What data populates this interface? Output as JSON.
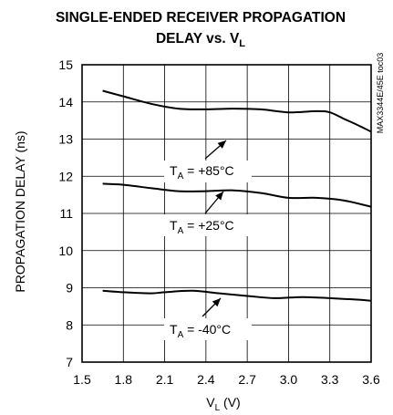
{
  "chart_data": {
    "type": "line",
    "title_line1": "SINGLE-ENDED RECEIVER PROPAGATION",
    "title_line2_prefix": "DELAY vs. V",
    "title_line2_sub": "L",
    "xlabel_main": "V",
    "xlabel_sub": "L",
    "xlabel_unit": " (V)",
    "ylabel": "PROPAGATION DELAY (ns)",
    "side_label": "MAX3344E/45E toc03",
    "xlim": [
      1.5,
      3.6
    ],
    "ylim": [
      7,
      15
    ],
    "xticks": [
      "1.5",
      "1.8",
      "2.1",
      "2.4",
      "2.7",
      "3.0",
      "3.3",
      "3.6"
    ],
    "yticks": [
      "7",
      "8",
      "9",
      "10",
      "11",
      "12",
      "13",
      "14",
      "15"
    ],
    "grid": true,
    "series": [
      {
        "name": "T_A = +85°C",
        "label_main": "T",
        "label_sub": "A",
        "label_rest": " = +85°C",
        "x": [
          1.65,
          1.8,
          2.0,
          2.2,
          2.4,
          2.6,
          2.8,
          3.0,
          3.2,
          3.3,
          3.4,
          3.5,
          3.6
        ],
        "y": [
          14.3,
          14.15,
          13.95,
          13.82,
          13.8,
          13.82,
          13.8,
          13.72,
          13.75,
          13.72,
          13.55,
          13.38,
          13.2
        ]
      },
      {
        "name": "T_A = +25°C",
        "label_main": "T",
        "label_sub": "A",
        "label_rest": " = +25°C",
        "x": [
          1.65,
          1.8,
          2.0,
          2.2,
          2.4,
          2.6,
          2.8,
          3.0,
          3.2,
          3.4,
          3.6
        ],
        "y": [
          11.8,
          11.77,
          11.68,
          11.6,
          11.6,
          11.62,
          11.55,
          11.42,
          11.42,
          11.35,
          11.18
        ]
      },
      {
        "name": "T_A = -40°C",
        "label_main": "T",
        "label_sub": "A",
        "label_rest": " = -40°C",
        "x": [
          1.65,
          1.8,
          2.0,
          2.1,
          2.3,
          2.5,
          2.7,
          2.9,
          3.1,
          3.3,
          3.5,
          3.6
        ],
        "y": [
          8.92,
          8.88,
          8.85,
          8.88,
          8.92,
          8.85,
          8.78,
          8.72,
          8.75,
          8.72,
          8.68,
          8.65
        ]
      }
    ]
  }
}
